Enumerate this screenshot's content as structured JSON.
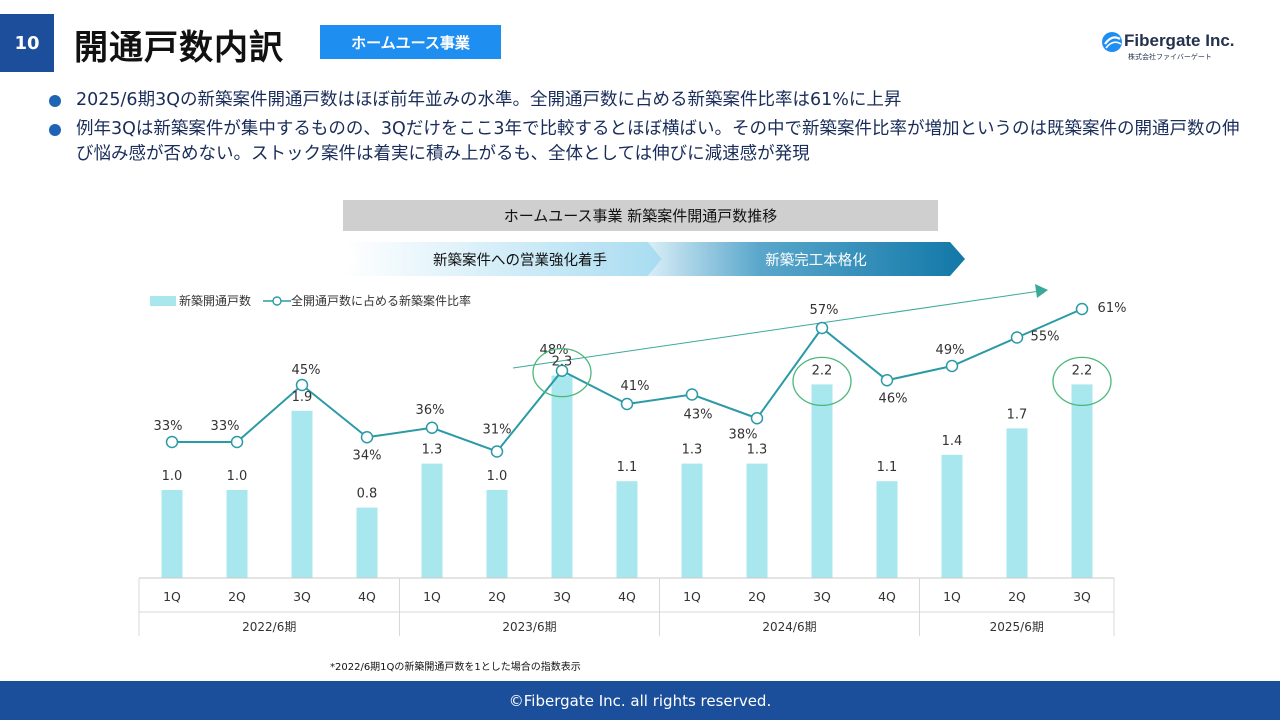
{
  "header": {
    "page_number": "10",
    "title": "開通戸数内訳",
    "segment_tag": "ホームユース事業",
    "logo": {
      "name": "Fibergate Inc.",
      "sub": "株式会社ファイバーゲート"
    }
  },
  "bullets": [
    "2025/6期3Qの新築案件開通戸数はほぼ前年並みの水準。全開通戸数に占める新築案件比率は61%に上昇",
    "例年3Qは新築案件が集中するものの、3Qだけをここ3年で比較するとほぼ横ばい。その中で新築案件比率が増加というのは既築案件の開通戸数の伸び悩み感が否めない。ストック案件は着実に積み上がるも、全体としては伸びに減速感が発現"
  ],
  "phases": [
    {
      "label": "新築案件への営業強化着手"
    },
    {
      "label": "新築完工本格化"
    }
  ],
  "footnote": "*2022/6期1Qの新築開通戸数を1とした場合の指数表示",
  "footer": "©Fibergate Inc. all rights reserved.",
  "colors": {
    "bar": "#a9e7ee",
    "line": "#2a9aa6",
    "brand": "#1d4e9c",
    "tag": "#1f8ef1"
  },
  "chart_data": {
    "type": "bar",
    "title": "ホームユース事業 新築案件開通戸数推移",
    "legend": [
      "新築開通戸数",
      "全開通戸数に占める新築案件比率"
    ],
    "legend_placement": "top-left",
    "categories": [
      "1Q",
      "2Q",
      "3Q",
      "4Q",
      "1Q",
      "2Q",
      "3Q",
      "4Q",
      "1Q",
      "2Q",
      "3Q",
      "4Q",
      "1Q",
      "2Q",
      "3Q"
    ],
    "groups": [
      {
        "label": "2022/6期",
        "count": 4
      },
      {
        "label": "2023/6期",
        "count": 4
      },
      {
        "label": "2024/6期",
        "count": 4
      },
      {
        "label": "2025/6期",
        "count": 3
      }
    ],
    "series": [
      {
        "name": "新築開通戸数",
        "type": "bar",
        "values": [
          1.0,
          1.0,
          1.9,
          0.8,
          1.3,
          1.0,
          2.3,
          1.1,
          1.3,
          1.3,
          2.2,
          1.1,
          1.4,
          1.7,
          2.2
        ],
        "labels": [
          "1.0",
          "1.0",
          "1.9",
          "0.8",
          "1.3",
          "1.0",
          "2.3",
          "1.1",
          "1.3",
          "1.3",
          "2.2",
          "1.1",
          "1.4",
          "1.7",
          "2.2"
        ]
      },
      {
        "name": "全開通戸数に占める新築案件比率",
        "type": "line",
        "values": [
          33,
          33,
          45,
          34,
          36,
          31,
          48,
          41,
          43,
          38,
          57,
          46,
          49,
          55,
          61
        ],
        "labels": [
          "33%",
          "33%",
          "45%",
          "34%",
          "36%",
          "31%",
          "48%",
          "41%",
          "43%",
          "38%",
          "57%",
          "46%",
          "49%",
          "55%",
          "61%"
        ]
      }
    ],
    "highlighted_indices": [
      6,
      10,
      14
    ],
    "grid": false
  }
}
